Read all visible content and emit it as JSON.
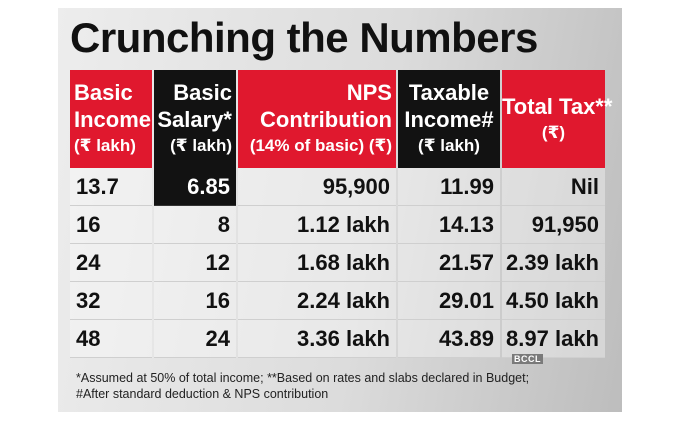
{
  "title": "Crunching the Numbers",
  "headers": [
    {
      "line1": "Basic",
      "line2": "Income",
      "unit": "(₹ lakh)"
    },
    {
      "line1": "Basic",
      "line2": "Salary*",
      "unit": "(₹ lakh)"
    },
    {
      "line1": "NPS",
      "line2": "Contribution",
      "unit": "(14% of basic) (₹)"
    },
    {
      "line1": "Taxable",
      "line2": "Income#",
      "unit": "(₹ lakh)"
    },
    {
      "line1": "",
      "line2": "Total Tax**",
      "unit": "(₹)"
    }
  ],
  "rows": [
    [
      "13.7",
      "6.85",
      "95,900",
      "11.99",
      "Nil"
    ],
    [
      "16",
      "8",
      "1.12 lakh",
      "14.13",
      "91,950"
    ],
    [
      "24",
      "12",
      "1.68 lakh",
      "21.57",
      "2.39 lakh"
    ],
    [
      "32",
      "16",
      "2.24 lakh",
      "29.01",
      "4.50 lakh"
    ],
    [
      "48",
      "24",
      "3.36 lakh",
      "43.89",
      "8.97 lakh"
    ]
  ],
  "watermark": "BCCL",
  "footnote": {
    "line1": "*Assumed at 50% of total income; **Based on rates and slabs declared in Budget;",
    "line2": "#After standard deduction & NPS contribution"
  },
  "colors": {
    "red": "#e0182e",
    "black": "#121212"
  }
}
